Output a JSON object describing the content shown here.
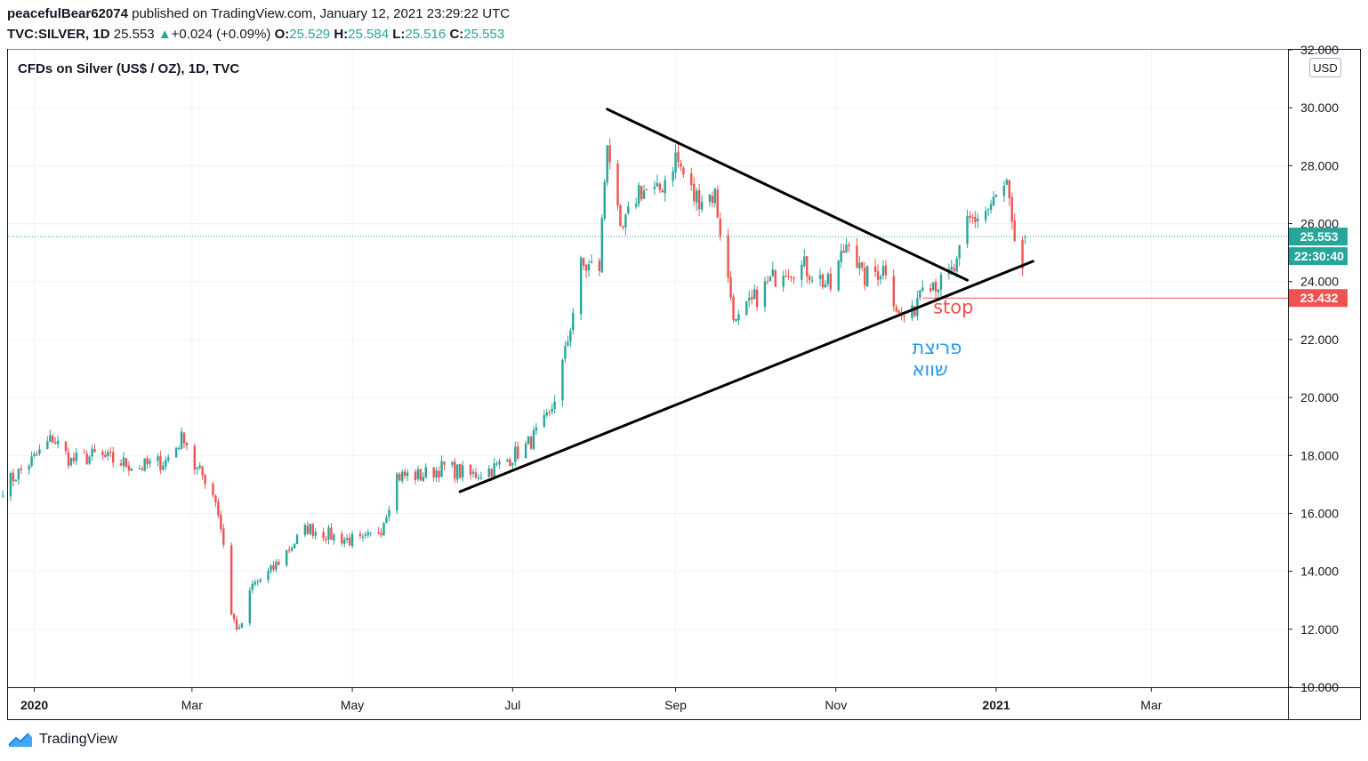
{
  "header": {
    "author": "peacefulBear62074",
    "published": "published on TradingView.com, January 12, 2021 23:29:22 UTC",
    "symbol": "TVC:SILVER, 1D",
    "last": "25.553",
    "change": "+0.024 (+0.09%)",
    "open_label": "O:",
    "open": "25.529",
    "high_label": "H:",
    "high": "25.584",
    "low_label": "L:",
    "low": "25.516",
    "close_label": "C:",
    "close": "25.553"
  },
  "footer": {
    "brand": "TradingView",
    "logo_icon": "tradingview-logo-icon"
  },
  "chart_data": {
    "type": "candlestick",
    "title": "CFDs on Silver (US$ / OZ), 1D, TVC",
    "currency": "USD",
    "ylim": [
      10,
      32
    ],
    "y_ticks": [
      "10.000",
      "12.000",
      "14.000",
      "16.000",
      "18.000",
      "20.000",
      "22.000",
      "24.000",
      "26.000",
      "28.000",
      "30.000",
      "32.000"
    ],
    "x_ticks": [
      {
        "label": "2020",
        "date": "2020-01-01",
        "bold": true
      },
      {
        "label": "Mar",
        "date": "2020-03-01",
        "bold": false
      },
      {
        "label": "May",
        "date": "2020-05-01",
        "bold": false
      },
      {
        "label": "Jul",
        "date": "2020-07-01",
        "bold": false
      },
      {
        "label": "Sep",
        "date": "2020-09-01",
        "bold": false
      },
      {
        "label": "Nov",
        "date": "2020-11-01",
        "bold": false
      },
      {
        "label": "2021",
        "date": "2021-01-01",
        "bold": true
      },
      {
        "label": "Mar",
        "date": "2021-03-01",
        "bold": false
      }
    ],
    "xlim": [
      "2019-12-22",
      "2021-04-22"
    ],
    "colors": {
      "up": "#26a69a",
      "down": "#ef5350",
      "price_tag": "#26a69a",
      "stop": "#ef5350",
      "annotation": "#2196f3",
      "grid": "#f0f3fa"
    },
    "price_line": {
      "value": 25.553,
      "label": "25.553",
      "countdown": "22:30:40"
    },
    "stop_line": {
      "value": 23.432,
      "label": "23.432",
      "from_date": "2020-12-04"
    },
    "anchors": [
      [
        "2019-12-20",
        16.9
      ],
      [
        "2020-01-01",
        17.9
      ],
      [
        "2020-01-08",
        18.6
      ],
      [
        "2020-01-15",
        17.8
      ],
      [
        "2020-01-24",
        18.0
      ],
      [
        "2020-02-01",
        17.8
      ],
      [
        "2020-02-10",
        17.6
      ],
      [
        "2020-02-20",
        17.8
      ],
      [
        "2020-02-27",
        18.7
      ],
      [
        "2020-03-02",
        17.6
      ],
      [
        "2020-03-06",
        17.2
      ],
      [
        "2020-03-10",
        16.5
      ],
      [
        "2020-03-13",
        15.0
      ],
      [
        "2020-03-16",
        12.5
      ],
      [
        "2020-03-19",
        11.9
      ],
      [
        "2020-03-24",
        13.5
      ],
      [
        "2020-03-31",
        14.0
      ],
      [
        "2020-04-07",
        14.8
      ],
      [
        "2020-04-14",
        15.5
      ],
      [
        "2020-04-24",
        15.2
      ],
      [
        "2020-05-05",
        15.0
      ],
      [
        "2020-05-12",
        15.5
      ],
      [
        "2020-05-18",
        17.3
      ],
      [
        "2020-05-27",
        17.3
      ],
      [
        "2020-06-05",
        17.6
      ],
      [
        "2020-06-15",
        17.3
      ],
      [
        "2020-06-25",
        17.6
      ],
      [
        "2020-07-06",
        18.3
      ],
      [
        "2020-07-15",
        19.3
      ],
      [
        "2020-07-21",
        21.5
      ],
      [
        "2020-07-27",
        24.5
      ],
      [
        "2020-08-03",
        24.5
      ],
      [
        "2020-08-06",
        29.0
      ],
      [
        "2020-08-11",
        25.5
      ],
      [
        "2020-08-18",
        27.2
      ],
      [
        "2020-08-25",
        27.0
      ],
      [
        "2020-09-01",
        28.3
      ],
      [
        "2020-09-08",
        26.9
      ],
      [
        "2020-09-16",
        27.0
      ],
      [
        "2020-09-21",
        24.0
      ],
      [
        "2020-09-24",
        22.5
      ],
      [
        "2020-10-02",
        23.5
      ],
      [
        "2020-10-12",
        24.5
      ],
      [
        "2020-10-20",
        24.5
      ],
      [
        "2020-10-30",
        23.8
      ],
      [
        "2020-11-06",
        25.6
      ],
      [
        "2020-11-11",
        24.1
      ],
      [
        "2020-11-20",
        24.5
      ],
      [
        "2020-11-25",
        22.8
      ],
      [
        "2020-11-30",
        22.8
      ],
      [
        "2020-12-04",
        24.2
      ],
      [
        "2020-12-11",
        23.9
      ],
      [
        "2020-12-17",
        24.5
      ],
      [
        "2020-12-21",
        26.0
      ],
      [
        "2020-12-29",
        26.5
      ],
      [
        "2021-01-05",
        27.3
      ],
      [
        "2021-01-08",
        25.0
      ],
      [
        "2021-01-11",
        24.5
      ],
      [
        "2021-01-12",
        25.55
      ]
    ],
    "lines": [
      {
        "name": "descending-trendline",
        "from": [
          "2020-08-06",
          29.95
        ],
        "to": [
          "2020-12-21",
          24.05
        ]
      },
      {
        "name": "ascending-trendline",
        "from": [
          "2020-06-11",
          16.75
        ],
        "to": [
          "2021-01-15",
          24.7
        ]
      }
    ],
    "annotations": [
      {
        "name": "stop-label",
        "text": "stop",
        "date": "2020-12-08",
        "value": 22.9,
        "color": "#ef5350"
      },
      {
        "name": "breakout-label-line1",
        "text": "פריצת",
        "date": "2020-11-30",
        "value": 21.5,
        "color": "#2196f3"
      },
      {
        "name": "breakout-label-line2",
        "text": "שווא",
        "date": "2020-11-30",
        "value": 20.75,
        "color": "#2196f3"
      }
    ]
  }
}
